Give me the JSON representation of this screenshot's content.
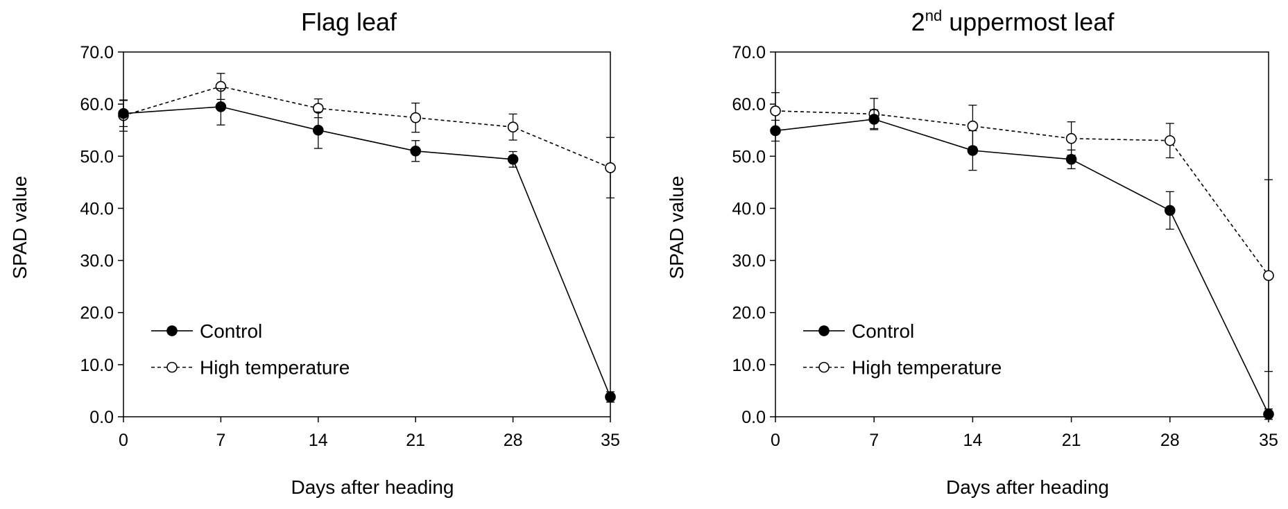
{
  "chart_data": [
    {
      "type": "line",
      "title": "Flag leaf",
      "xlabel": "Days after heading",
      "ylabel": "SPAD value",
      "x": [
        0,
        7,
        14,
        21,
        28,
        35
      ],
      "xlim": [
        0,
        35
      ],
      "ylim": [
        0,
        70
      ],
      "yticks": [
        "0.0",
        "10.0",
        "20.0",
        "30.0",
        "40.0",
        "50.0",
        "60.0",
        "70.0"
      ],
      "xticks": [
        "0",
        "7",
        "14",
        "21",
        "28",
        "35"
      ],
      "legend_position": "lower-left",
      "series": [
        {
          "name": "Control",
          "marker": "filled-circle",
          "line": "solid",
          "values": [
            58.2,
            59.5,
            55.0,
            51.0,
            49.4,
            3.8
          ],
          "error": [
            2.5,
            3.5,
            3.5,
            2.0,
            1.5,
            1.0
          ]
        },
        {
          "name": "High temperature",
          "marker": "open-circle",
          "line": "dashed",
          "values": [
            57.8,
            63.4,
            59.2,
            57.4,
            55.6,
            47.8
          ],
          "error": [
            3.0,
            2.5,
            1.8,
            2.8,
            2.5,
            5.8
          ]
        }
      ]
    },
    {
      "type": "line",
      "title": "2nd uppermost leaf",
      "title_parts": {
        "pre": "2",
        "sup": "nd",
        "post": " uppermost leaf"
      },
      "xlabel": "Days after heading",
      "ylabel": "SPAD value",
      "x": [
        0,
        7,
        14,
        21,
        28,
        35
      ],
      "xlim": [
        0,
        35
      ],
      "ylim": [
        0,
        70
      ],
      "yticks": [
        "0.0",
        "10.0",
        "20.0",
        "30.0",
        "40.0",
        "50.0",
        "60.0",
        "70.0"
      ],
      "xticks": [
        "0",
        "7",
        "14",
        "21",
        "28",
        "35"
      ],
      "legend_position": "lower-left",
      "series": [
        {
          "name": "Control",
          "marker": "filled-circle",
          "line": "solid",
          "values": [
            54.9,
            57.1,
            51.1,
            49.4,
            39.6,
            0.5
          ],
          "error": [
            2.0,
            1.8,
            3.8,
            1.8,
            3.6,
            1.0
          ]
        },
        {
          "name": "High temperature",
          "marker": "open-circle",
          "line": "dashed",
          "values": [
            58.7,
            58.1,
            55.8,
            53.4,
            53.0,
            27.1
          ],
          "error": [
            3.5,
            3.0,
            4.0,
            3.2,
            3.3,
            18.4
          ]
        }
      ]
    }
  ]
}
